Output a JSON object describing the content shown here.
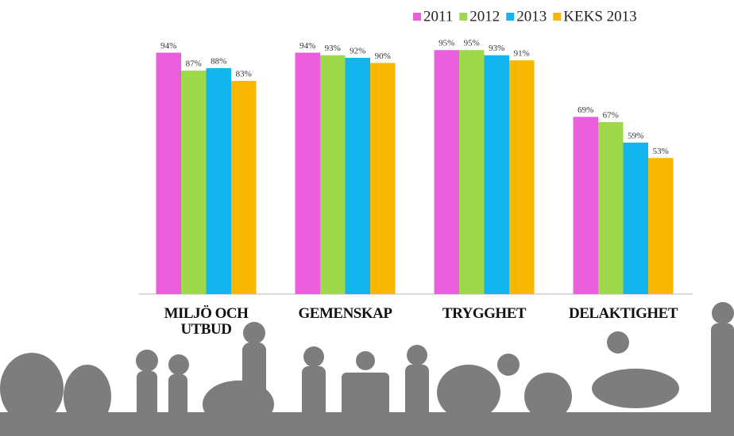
{
  "chart_data": {
    "type": "bar",
    "categories": [
      "MILJÖ OCH UTBUD",
      "GEMENSKAP",
      "TRYGGHET",
      "DELAKTIGHET"
    ],
    "series": [
      {
        "name": "2011",
        "color": "#ec5fdc",
        "values": [
          94,
          94,
          95,
          69
        ],
        "value_labels": [
          "94%",
          "94%",
          "95%",
          "69%"
        ]
      },
      {
        "name": "2012",
        "color": "#9fd84a",
        "values": [
          87,
          93,
          95,
          67
        ],
        "value_labels": [
          "87%",
          "93%",
          "95%",
          "67%"
        ]
      },
      {
        "name": "2013",
        "color": "#13b5ee",
        "values": [
          88,
          92,
          93,
          59
        ],
        "value_labels": [
          "88%",
          "92%",
          "93%",
          "59%"
        ]
      },
      {
        "name": "KEKS 2013",
        "color": "#f8b700",
        "values": [
          83,
          90,
          91,
          53
        ],
        "value_labels": [
          "83%",
          "90%",
          "91%",
          "53%"
        ]
      }
    ],
    "ylim": [
      0,
      100
    ]
  }
}
